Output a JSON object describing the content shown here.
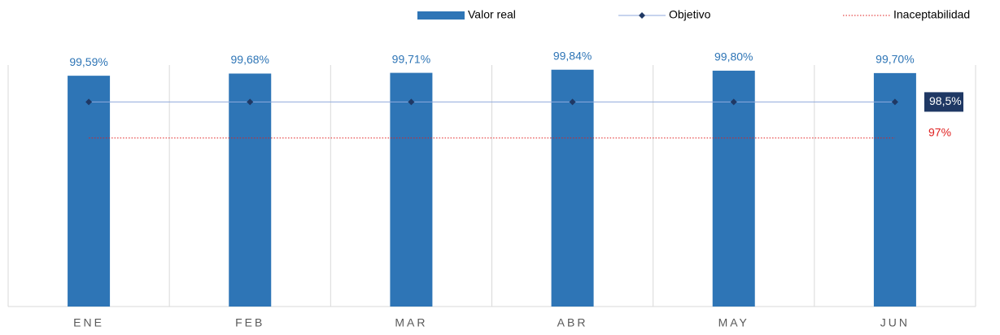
{
  "chart_data": {
    "type": "bar",
    "categories": [
      "ENE",
      "FEB",
      "MAR",
      "ABR",
      "MAY",
      "JUN"
    ],
    "ylim": [
      90,
      100
    ],
    "series": [
      {
        "name": "Valor real",
        "type": "bar",
        "color": "#2e75b6",
        "values": [
          99.59,
          99.68,
          99.71,
          99.84,
          99.8,
          99.7
        ],
        "value_labels": [
          "99,59%",
          "99,68%",
          "99,71%",
          "99,84%",
          "99,80%",
          "99,70%"
        ]
      },
      {
        "name": "Objetivo",
        "type": "line",
        "color": "#1f3864",
        "marker": "diamond",
        "values": [
          98.5,
          98.5,
          98.5,
          98.5,
          98.5,
          98.5
        ],
        "label": "98,5%"
      },
      {
        "name": "Inaceptabilidad",
        "type": "line",
        "color": "#e02020",
        "dash": "dotted",
        "values": [
          97,
          97,
          97,
          97,
          97,
          97
        ],
        "label": "97%"
      }
    ]
  }
}
